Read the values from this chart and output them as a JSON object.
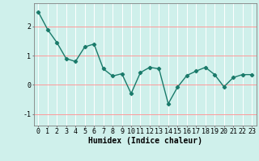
{
  "x": [
    0,
    1,
    2,
    3,
    4,
    5,
    6,
    7,
    8,
    9,
    10,
    11,
    12,
    13,
    14,
    15,
    16,
    17,
    18,
    19,
    20,
    21,
    22,
    23
  ],
  "y": [
    2.5,
    1.9,
    1.45,
    0.9,
    0.8,
    1.3,
    1.4,
    0.55,
    0.3,
    0.38,
    -0.3,
    0.42,
    0.6,
    0.55,
    -0.65,
    -0.08,
    0.32,
    0.47,
    0.6,
    0.35,
    -0.07,
    0.25,
    0.35,
    0.35
  ],
  "line_color": "#1a7a6a",
  "marker": "D",
  "marker_size": 2.2,
  "bg_color": "#cff0eb",
  "grid_color": "#ffffff",
  "xlabel": "Humidex (Indice chaleur)",
  "ylim": [
    -1.4,
    2.8
  ],
  "xlim": [
    -0.5,
    23.5
  ],
  "yticks": [
    -1,
    0,
    1,
    2
  ],
  "xticks": [
    0,
    1,
    2,
    3,
    4,
    5,
    6,
    7,
    8,
    9,
    10,
    11,
    12,
    13,
    14,
    15,
    16,
    17,
    18,
    19,
    20,
    21,
    22,
    23
  ],
  "xlabel_fontsize": 7,
  "tick_fontsize": 6,
  "line_width": 1.0,
  "hline_color": "#ff9999",
  "spine_color": "#808080",
  "vgrid_color": "#c0c0c0"
}
